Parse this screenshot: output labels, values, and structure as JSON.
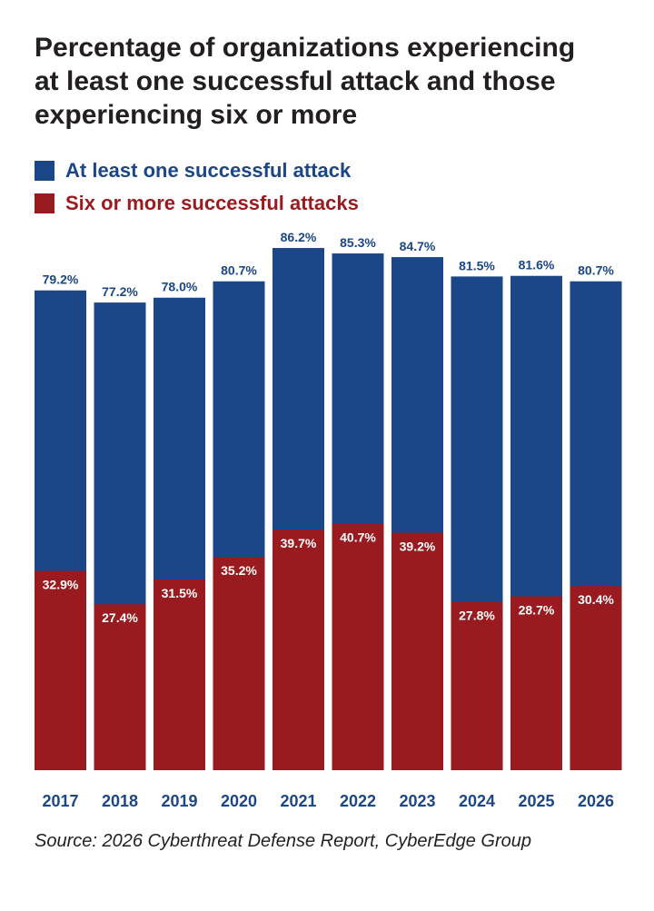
{
  "title_lines": [
    "Percentage of organizations experiencing",
    "at least one successful attack and those",
    "experiencing six or more"
  ],
  "source": "Source: 2026 Cyberthreat Defense Report, CyberEdge Group",
  "colors": {
    "series_total": "#1b4688",
    "series_six": "#991b1f",
    "title": "#231f20"
  },
  "chart_data": {
    "type": "bar",
    "layout": "overlapping",
    "categories": [
      "2017",
      "2018",
      "2019",
      "2020",
      "2021",
      "2022",
      "2023",
      "2024",
      "2025",
      "2026"
    ],
    "series": [
      {
        "name": "At least one successful attack",
        "values": [
          79.2,
          77.2,
          78.0,
          80.7,
          86.2,
          85.3,
          84.7,
          81.5,
          81.6,
          80.7
        ]
      },
      {
        "name": "Six or more successful attacks",
        "values": [
          32.9,
          27.4,
          31.5,
          35.2,
          39.7,
          40.7,
          39.2,
          27.8,
          28.7,
          30.4
        ]
      }
    ],
    "value_labels": {
      "total": [
        "79.2%",
        "77.2%",
        "78.0%",
        "80.7%",
        "86.2%",
        "85.3%",
        "84.7%",
        "81.5%",
        "81.6%",
        "80.7%"
      ],
      "six": [
        "32.9%",
        "27.4%",
        "31.5%",
        "35.2%",
        "39.7%",
        "40.7%",
        "39.2%",
        "27.8%",
        "28.7%",
        "30.4%"
      ]
    },
    "ylim": [
      0,
      100
    ],
    "grid": false,
    "legend_position": "top-left"
  }
}
